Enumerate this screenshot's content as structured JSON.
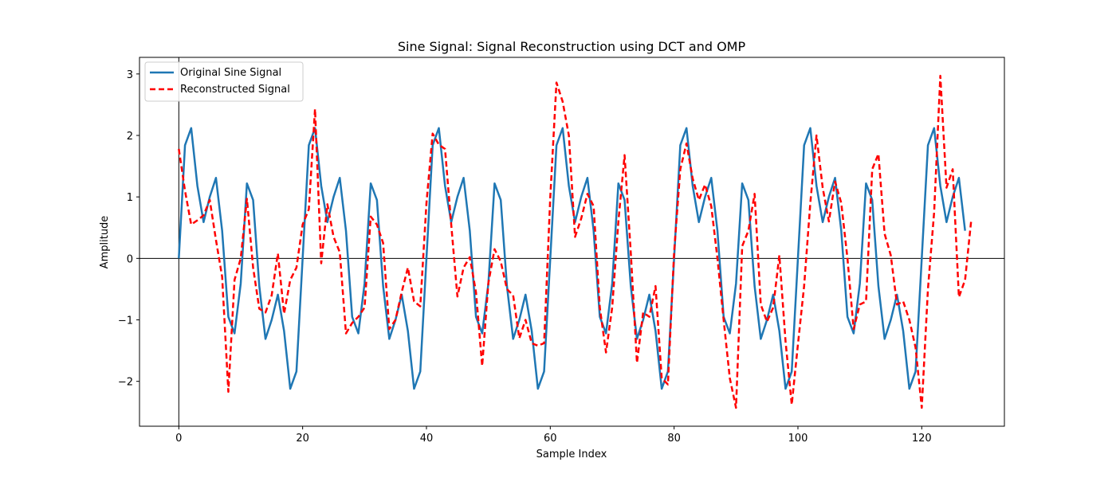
{
  "chart_data": {
    "type": "line",
    "title": "Sine Signal: Signal Reconstruction using DCT and OMP",
    "xlabel": "Sample Index",
    "ylabel": "Amplitude",
    "xlim": [
      -6.35,
      133.35
    ],
    "ylim": [
      -2.73,
      3.27
    ],
    "xticks": [
      0,
      20,
      40,
      60,
      80,
      100,
      120
    ],
    "yticks": [
      -2,
      -1,
      0,
      1,
      2,
      3
    ],
    "grid": false,
    "reference_lines": {
      "horizontal": 0,
      "vertical": 0
    },
    "legend_position": "upper-left",
    "series": [
      {
        "name": "Original Sine Signal",
        "color": "#1f77b4",
        "style": "solid",
        "x_start": 0,
        "values": [
          0.0,
          1.84,
          2.12,
          1.18,
          0.59,
          1.0,
          1.31,
          0.45,
          -0.95,
          -1.22,
          -0.41,
          1.22,
          0.95,
          -0.45,
          -1.31,
          -1.0,
          -0.59,
          -1.18,
          -2.12,
          -1.84,
          0.0,
          1.84,
          2.12,
          1.18,
          0.59,
          1.0,
          1.31,
          0.45,
          -0.95,
          -1.22,
          -0.41,
          1.22,
          0.95,
          -0.45,
          -1.31,
          -1.0,
          -0.59,
          -1.18,
          -2.12,
          -1.84,
          0.0,
          1.84,
          2.12,
          1.18,
          0.59,
          1.0,
          1.31,
          0.45,
          -0.95,
          -1.22,
          -0.41,
          1.22,
          0.95,
          -0.45,
          -1.31,
          -1.0,
          -0.59,
          -1.18,
          -2.12,
          -1.84,
          0.0,
          1.84,
          2.12,
          1.18,
          0.59,
          1.0,
          1.31,
          0.45,
          -0.95,
          -1.22,
          -0.41,
          1.22,
          0.95,
          -0.45,
          -1.31,
          -1.0,
          -0.59,
          -1.18,
          -2.12,
          -1.84,
          0.0,
          1.84,
          2.12,
          1.18,
          0.59,
          1.0,
          1.31,
          0.45,
          -0.95,
          -1.22,
          -0.41,
          1.22,
          0.95,
          -0.45,
          -1.31,
          -1.0,
          -0.59,
          -1.18,
          -2.12,
          -1.84,
          0.0,
          1.84,
          2.12,
          1.18,
          0.59,
          1.0,
          1.31,
          0.45,
          -0.95,
          -1.22,
          -0.41,
          1.22,
          0.95,
          -0.45,
          -1.31,
          -1.0,
          -0.59,
          -1.18,
          -2.12,
          -1.84,
          0.0,
          1.84,
          2.12,
          1.18,
          0.59,
          1.0,
          1.31,
          0.45
        ]
      },
      {
        "name": "Reconstructed Signal",
        "color": "#ff0000",
        "style": "dashed",
        "x_start": 0,
        "values": [
          1.78,
          1.1,
          0.55,
          0.62,
          0.7,
          0.95,
          0.3,
          -0.3,
          -2.17,
          -0.35,
          0.0,
          0.97,
          -0.15,
          -0.82,
          -0.88,
          -0.6,
          0.08,
          -0.9,
          -0.35,
          -0.15,
          0.55,
          0.8,
          2.43,
          -0.08,
          0.88,
          0.35,
          0.1,
          -1.22,
          -1.05,
          -0.95,
          -0.8,
          0.68,
          0.55,
          0.25,
          -1.15,
          -1.0,
          -0.55,
          -0.15,
          -0.7,
          -0.78,
          0.9,
          2.03,
          1.85,
          1.78,
          0.55,
          -0.62,
          -0.15,
          0.02,
          -0.55,
          -1.75,
          -0.4,
          0.15,
          -0.05,
          -0.5,
          -0.6,
          -1.3,
          -1.0,
          -1.38,
          -1.42,
          -1.38,
          1.0,
          2.86,
          2.55,
          2.0,
          0.35,
          0.65,
          1.05,
          0.85,
          -0.8,
          -1.53,
          -0.8,
          0.6,
          1.68,
          0.1,
          -1.7,
          -0.88,
          -0.95,
          -0.45,
          -1.95,
          -2.05,
          0.1,
          1.45,
          1.87,
          1.3,
          0.95,
          1.2,
          0.85,
          0.0,
          -1.0,
          -1.95,
          -2.43,
          0.2,
          0.45,
          1.05,
          -0.75,
          -1.03,
          -0.8,
          0.05,
          -1.35,
          -2.38,
          -1.4,
          -0.45,
          0.9,
          2.0,
          1.15,
          0.6,
          1.25,
          0.9,
          0.0,
          -1.15,
          -0.75,
          -0.7,
          1.45,
          1.7,
          0.4,
          0.05,
          -0.75,
          -0.7,
          -1.0,
          -1.45,
          -2.43,
          -0.5,
          0.75,
          2.97,
          1.15,
          1.45,
          -0.63,
          -0.35,
          0.63
        ]
      }
    ]
  }
}
